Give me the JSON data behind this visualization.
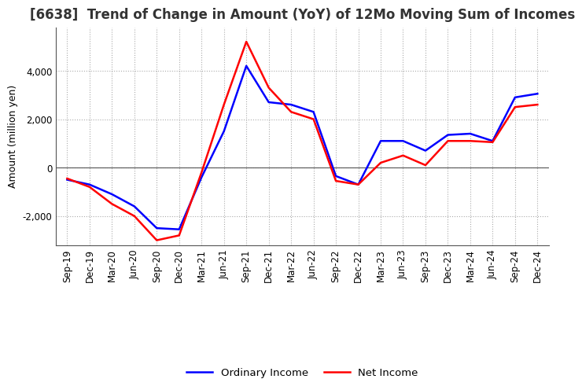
{
  "title": "[6638]  Trend of Change in Amount (YoY) of 12Mo Moving Sum of Incomes",
  "ylabel": "Amount (million yen)",
  "x_labels": [
    "Sep-19",
    "Dec-19",
    "Mar-20",
    "Jun-20",
    "Sep-20",
    "Dec-20",
    "Mar-21",
    "Jun-21",
    "Sep-21",
    "Dec-21",
    "Mar-22",
    "Jun-22",
    "Sep-22",
    "Dec-22",
    "Mar-23",
    "Jun-23",
    "Sep-23",
    "Dec-23",
    "Mar-24",
    "Jun-24",
    "Sep-24",
    "Dec-24"
  ],
  "ordinary_income": [
    -500,
    -700,
    -1100,
    -1600,
    -2500,
    -2550,
    -400,
    1500,
    4200,
    2700,
    2600,
    2300,
    -350,
    -700,
    1100,
    1100,
    700,
    1350,
    1400,
    1100,
    2900,
    3050
  ],
  "net_income": [
    -450,
    -800,
    -1500,
    -2000,
    -3000,
    -2800,
    -200,
    2600,
    5200,
    3300,
    2300,
    2000,
    -550,
    -700,
    200,
    500,
    100,
    1100,
    1100,
    1050,
    2500,
    2600
  ],
  "ordinary_color": "#0000FF",
  "net_color": "#FF0000",
  "ylim": [
    -3200,
    5800
  ],
  "yticks": [
    -2000,
    0,
    2000,
    4000
  ],
  "background_color": "#FFFFFF",
  "grid_color": "#AAAAAA",
  "title_fontsize": 12,
  "label_fontsize": 9,
  "tick_fontsize": 8.5
}
